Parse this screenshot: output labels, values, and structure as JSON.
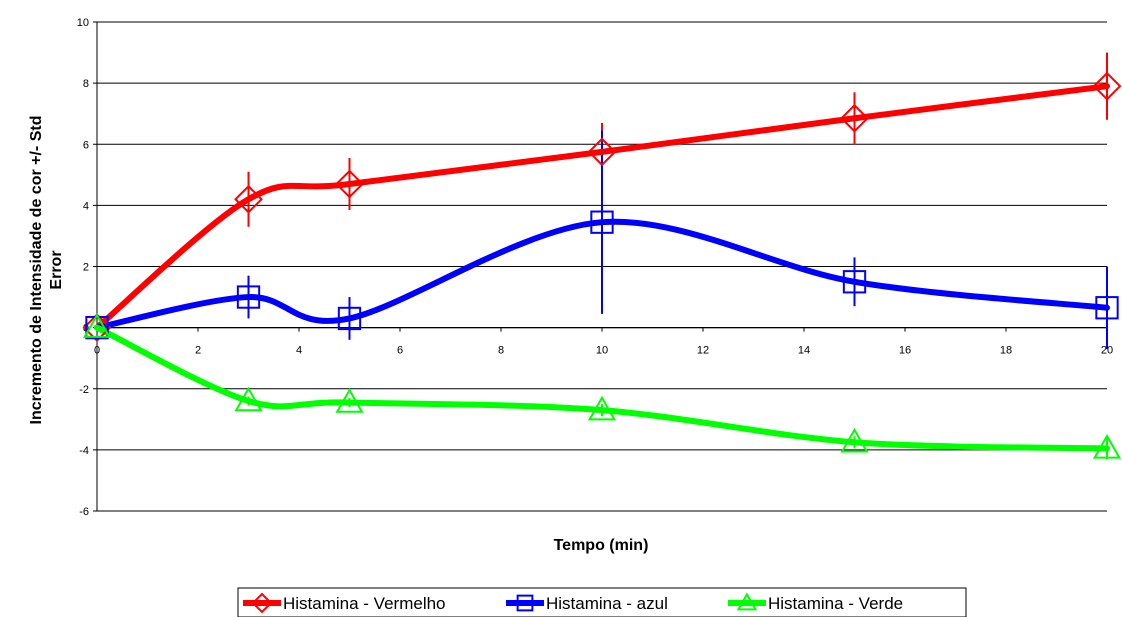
{
  "chart_data": {
    "type": "line",
    "title": "",
    "xlabel": "Tempo (min)",
    "ylabel_line1": "Incremento de Intensidade de cor +/- Std",
    "ylabel_line2": "Error",
    "xlim": [
      0,
      20
    ],
    "ylim": [
      -6,
      10
    ],
    "xticks": [
      0,
      2,
      4,
      6,
      8,
      10,
      12,
      14,
      16,
      18,
      20
    ],
    "yticks": [
      -6,
      -4,
      -2,
      0,
      2,
      4,
      6,
      8,
      10
    ],
    "grid": "horizontal",
    "legend_placement": "bottom",
    "x": [
      0,
      3,
      5,
      10,
      15,
      20
    ],
    "series": [
      {
        "name": "Histamina - Vermelho",
        "color": "#ff0000",
        "marker": "diamond",
        "values": [
          0,
          4.2,
          4.7,
          5.75,
          6.85,
          7.9
        ],
        "error": [
          0,
          0.9,
          0.85,
          0.95,
          0.85,
          1.1
        ]
      },
      {
        "name": "Histamina - azul",
        "color": "#0000ff",
        "marker": "square",
        "values": [
          0,
          1.0,
          0.3,
          3.45,
          1.5,
          0.65
        ],
        "error": [
          0,
          0.7,
          0.7,
          3.0,
          0.8,
          1.35
        ]
      },
      {
        "name": "Histamina - Verde",
        "color": "#00ff00",
        "marker": "triangle",
        "values": [
          0,
          -2.4,
          -2.45,
          -2.7,
          -3.75,
          -3.95
        ],
        "error": [
          0,
          0.15,
          0.15,
          0.2,
          0.2,
          0.35
        ]
      }
    ]
  }
}
